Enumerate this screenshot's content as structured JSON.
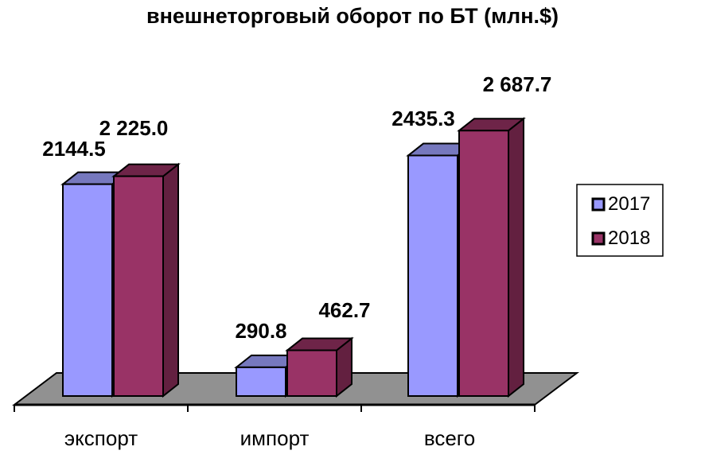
{
  "title": "внешнеторговый оборот по БТ (млн.$)",
  "chart_data": {
    "type": "bar",
    "effect": "3d-clustered-column",
    "title": "внешнеторговый оборот по БТ (млн.$)",
    "categories": [
      "экспорт",
      "импорт",
      "всего"
    ],
    "series": [
      {
        "name": "2017",
        "values": [
          2144.5,
          290.8,
          2435.3
        ],
        "value_labels": [
          "2144.5",
          "290.8",
          "2435.3"
        ],
        "color_front": "#9999FF",
        "color_top": "#7678BE",
        "color_side": "#6567A6"
      },
      {
        "name": "2018",
        "values": [
          2225.0,
          462.7,
          2687.7
        ],
        "value_labels": [
          "2 225.0",
          "462.7",
          "2 687.7"
        ],
        "color_front": "#993366",
        "color_top": "#6E2448",
        "color_side": "#632040"
      }
    ],
    "value_labels_visible": true,
    "legend": {
      "position": "right",
      "entries": [
        "2017",
        "2018"
      ]
    },
    "axes": {
      "x_ticks": [
        "экспорт",
        "импорт",
        "всего"
      ],
      "y_axis_visible": false,
      "gridlines": false
    },
    "floor_color": "#919191",
    "outline_color": "#000000",
    "background_color": "#FFFFFF",
    "ylim": [
      0,
      2700
    ]
  }
}
